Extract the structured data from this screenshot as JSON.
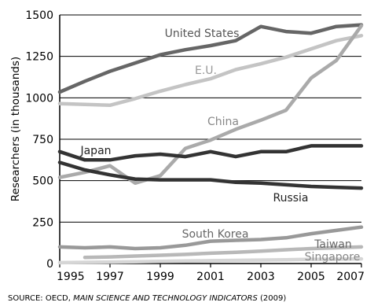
{
  "chart_data": {
    "type": "line",
    "ylabel": "Researchers (in thousands)",
    "xlim": [
      1995,
      2007
    ],
    "ylim": [
      0,
      1500
    ],
    "x_ticks": [
      "1995",
      "1997",
      "1999",
      "2001",
      "2003",
      "2005",
      "2007"
    ],
    "y_ticks": [
      "0",
      "250",
      "500",
      "750",
      "1000",
      "1250",
      "1500"
    ],
    "grid": "horizontal",
    "source": {
      "prefix": "SOURCE: OECD, ",
      "title": "MAIN SCIENCE AND TECHNOLOGY INDICATORS",
      "suffix": " (2009)"
    },
    "series": [
      {
        "name": "United States",
        "color": "#666666",
        "x": [
          1995,
          1996,
          1997,
          1998,
          1999,
          2000,
          2001,
          2002,
          2003,
          2004,
          2005,
          2006,
          2007
        ],
        "values": [
          1035,
          1100,
          1160,
          1210,
          1260,
          1290,
          1315,
          1345,
          1430,
          1400,
          1390,
          1430,
          1440
        ]
      },
      {
        "name": "E.U.",
        "color": "#c4c4c4",
        "x": [
          1995,
          1996,
          1997,
          1998,
          1999,
          2000,
          2001,
          2002,
          2003,
          2004,
          2005,
          2006,
          2007
        ],
        "values": [
          965,
          960,
          955,
          995,
          1040,
          1080,
          1115,
          1170,
          1205,
          1245,
          1295,
          1345,
          1375
        ]
      },
      {
        "name": "China",
        "color": "#aaaaaa",
        "x": [
          1995,
          1996,
          1997,
          1998,
          1999,
          2000,
          2001,
          2002,
          2003,
          2004,
          2005,
          2006,
          2007
        ],
        "values": [
          520,
          550,
          590,
          485,
          530,
          695,
          745,
          810,
          865,
          925,
          1120,
          1225,
          1435
        ]
      },
      {
        "name": "Japan",
        "color": "#333333",
        "x": [
          1995,
          1996,
          1997,
          1998,
          1999,
          2000,
          2001,
          2002,
          2003,
          2004,
          2005,
          2006,
          2007
        ],
        "values": [
          675,
          625,
          625,
          650,
          660,
          645,
          675,
          645,
          675,
          675,
          710,
          710,
          710
        ]
      },
      {
        "name": "Russia",
        "color": "#333333",
        "x": [
          1995,
          1996,
          1997,
          1998,
          1999,
          2000,
          2001,
          2002,
          2003,
          2004,
          2005,
          2006,
          2007
        ],
        "values": [
          610,
          565,
          535,
          510,
          505,
          505,
          505,
          490,
          485,
          475,
          465,
          460,
          455
        ]
      },
      {
        "name": "South Korea",
        "color": "#999999",
        "x": [
          1995,
          1996,
          1997,
          1998,
          1999,
          2000,
          2001,
          2002,
          2003,
          2004,
          2005,
          2006,
          2007
        ],
        "values": [
          100,
          95,
          100,
          90,
          95,
          110,
          135,
          140,
          145,
          155,
          180,
          200,
          220
        ]
      },
      {
        "name": "Taiwan",
        "color": "#b8b8b8",
        "x": [
          1996,
          1997,
          1998,
          1999,
          2000,
          2001,
          2002,
          2003,
          2004,
          2005,
          2006,
          2007
        ],
        "values": [
          37,
          40,
          45,
          50,
          55,
          62,
          68,
          75,
          83,
          90,
          95,
          100
        ]
      },
      {
        "name": "Singapore",
        "color": "#d6d6d6",
        "x": [
          1995,
          1996,
          1997,
          1998,
          1999,
          2000,
          2001,
          2002,
          2003,
          2004,
          2005,
          2006,
          2007
        ],
        "values": [
          5,
          7,
          9,
          11,
          13,
          15,
          17,
          19,
          21,
          23,
          25,
          26,
          28
        ]
      }
    ]
  }
}
